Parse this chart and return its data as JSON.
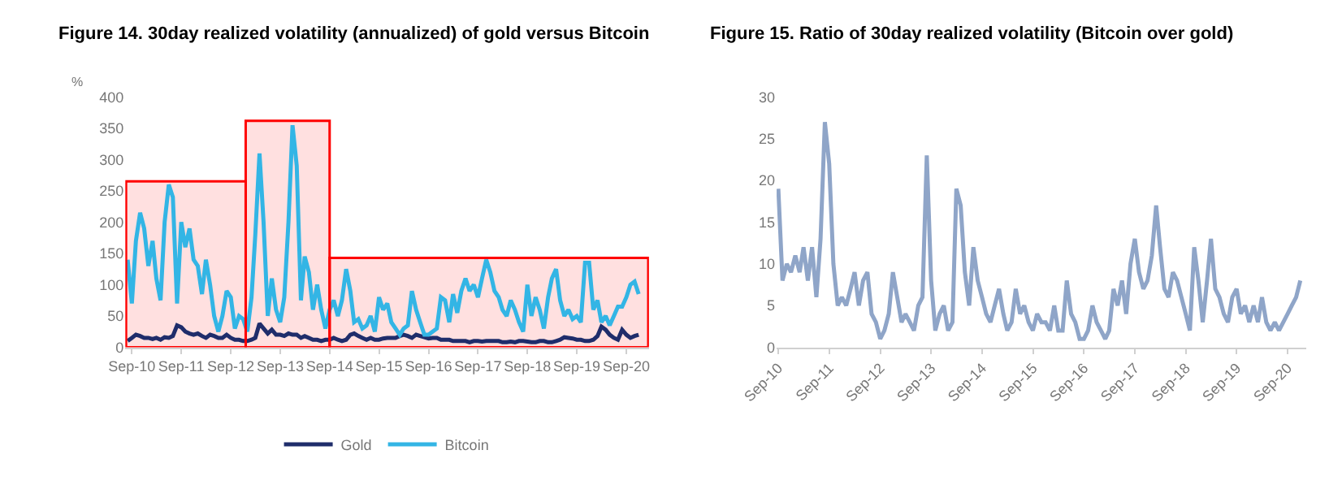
{
  "chart_data": [
    {
      "type": "line",
      "title": "Figure 14. 30day realized volatility (annualized) of gold versus Bitcoin",
      "ylabel": "%",
      "legend": "bottom",
      "grid": false,
      "x": [
        "2010-08",
        "2010-09",
        "2010-10",
        "2010-11",
        "2010-12",
        "2011-01",
        "2011-02",
        "2011-03",
        "2011-04",
        "2011-05",
        "2011-06",
        "2011-07",
        "2011-08",
        "2011-09",
        "2011-10",
        "2011-11",
        "2011-12",
        "2012-01",
        "2012-02",
        "2012-03",
        "2012-04",
        "2012-05",
        "2012-06",
        "2012-07",
        "2012-08",
        "2012-09",
        "2012-10",
        "2012-11",
        "2012-12",
        "2013-01",
        "2013-02",
        "2013-03",
        "2013-04",
        "2013-05",
        "2013-06",
        "2013-07",
        "2013-08",
        "2013-09",
        "2013-10",
        "2013-11",
        "2013-12",
        "2014-01",
        "2014-02",
        "2014-03",
        "2014-04",
        "2014-05",
        "2014-06",
        "2014-07",
        "2014-08",
        "2014-09",
        "2014-10",
        "2014-11",
        "2014-12",
        "2015-01",
        "2015-02",
        "2015-03",
        "2015-04",
        "2015-05",
        "2015-06",
        "2015-07",
        "2015-08",
        "2015-09",
        "2015-10",
        "2015-11",
        "2015-12",
        "2016-01",
        "2016-02",
        "2016-03",
        "2016-04",
        "2016-05",
        "2016-06",
        "2016-07",
        "2016-08",
        "2016-09",
        "2016-10",
        "2016-11",
        "2016-12",
        "2017-01",
        "2017-02",
        "2017-03",
        "2017-04",
        "2017-05",
        "2017-06",
        "2017-07",
        "2017-08",
        "2017-09",
        "2017-10",
        "2017-11",
        "2017-12",
        "2018-01",
        "2018-02",
        "2018-03",
        "2018-04",
        "2018-05",
        "2018-06",
        "2018-07",
        "2018-08",
        "2018-09",
        "2018-10",
        "2018-11",
        "2018-12",
        "2019-01",
        "2019-02",
        "2019-03",
        "2019-04",
        "2019-05",
        "2019-06",
        "2019-07",
        "2019-08",
        "2019-09",
        "2019-10",
        "2019-11",
        "2019-12",
        "2020-01",
        "2020-02",
        "2020-03",
        "2020-04",
        "2020-05",
        "2020-06",
        "2020-07",
        "2020-08",
        "2020-09",
        "2020-10",
        "2020-11",
        "2020-12"
      ],
      "series": [
        {
          "name": "Gold",
          "color": "#1f2d6b",
          "values": [
            10,
            15,
            20,
            18,
            15,
            15,
            13,
            15,
            12,
            16,
            15,
            18,
            35,
            32,
            25,
            22,
            20,
            22,
            18,
            15,
            20,
            18,
            15,
            15,
            20,
            15,
            12,
            12,
            10,
            10,
            12,
            15,
            38,
            30,
            22,
            28,
            20,
            20,
            18,
            22,
            20,
            20,
            15,
            18,
            15,
            12,
            12,
            10,
            12,
            12,
            15,
            12,
            10,
            12,
            20,
            22,
            18,
            15,
            12,
            15,
            12,
            12,
            14,
            15,
            15,
            15,
            18,
            20,
            18,
            15,
            20,
            18,
            16,
            14,
            15,
            15,
            12,
            12,
            12,
            10,
            10,
            10,
            10,
            8,
            10,
            10,
            9,
            10,
            10,
            10,
            10,
            8,
            8,
            9,
            8,
            10,
            10,
            9,
            8,
            8,
            10,
            10,
            8,
            8,
            10,
            12,
            16,
            15,
            14,
            12,
            12,
            10,
            10,
            12,
            18,
            33,
            28,
            20,
            15,
            12,
            28,
            20,
            15,
            18,
            20
          ]
        },
        {
          "name": "Bitcoin",
          "color": "#33b5e5",
          "values": [
            140,
            70,
            170,
            215,
            190,
            130,
            170,
            110,
            75,
            200,
            260,
            240,
            70,
            200,
            160,
            190,
            140,
            130,
            85,
            140,
            100,
            50,
            25,
            50,
            90,
            80,
            30,
            50,
            45,
            25,
            80,
            180,
            310,
            200,
            50,
            110,
            60,
            40,
            80,
            200,
            355,
            290,
            75,
            145,
            120,
            60,
            100,
            60,
            30,
            60,
            75,
            50,
            75,
            125,
            90,
            40,
            45,
            30,
            35,
            50,
            25,
            80,
            60,
            70,
            40,
            30,
            20,
            30,
            35,
            90,
            60,
            40,
            20,
            20,
            25,
            30,
            80,
            75,
            40,
            85,
            55,
            90,
            110,
            90,
            100,
            80,
            110,
            140,
            120,
            90,
            80,
            60,
            50,
            75,
            60,
            40,
            25,
            100,
            50,
            80,
            60,
            30,
            80,
            110,
            125,
            75,
            50,
            60,
            45,
            50,
            40,
            135,
            135,
            60,
            75,
            40,
            50,
            35,
            50,
            65,
            65,
            80,
            100,
            105,
            85
          ]
        }
      ],
      "xlim": [
        "2010-07-15",
        "2021-02-15"
      ],
      "xticks": [
        {
          "value": "2010-09",
          "label": "Sep-10"
        },
        {
          "value": "2011-09",
          "label": "Sep-11"
        },
        {
          "value": "2012-09",
          "label": "Sep-12"
        },
        {
          "value": "2013-09",
          "label": "Sep-13"
        },
        {
          "value": "2014-09",
          "label": "Sep-14"
        },
        {
          "value": "2015-09",
          "label": "Sep-15"
        },
        {
          "value": "2016-09",
          "label": "Sep-16"
        },
        {
          "value": "2017-09",
          "label": "Sep-17"
        },
        {
          "value": "2018-09",
          "label": "Sep-18"
        },
        {
          "value": "2019-09",
          "label": "Sep-19"
        },
        {
          "value": "2020-09",
          "label": "Sep-20"
        }
      ],
      "ylim": [
        0,
        400
      ],
      "yticks": [
        0,
        50,
        100,
        150,
        200,
        250,
        300,
        350,
        400
      ],
      "bands": [
        {
          "axis": "x",
          "from": "2010-07-20",
          "to": "2012-12-20",
          "color": "#ff0000"
        },
        {
          "axis": "x",
          "from": "2012-12-20",
          "to": "2014-09-01",
          "color": "#ff0000"
        },
        {
          "axis": "x",
          "from": "2014-09-01",
          "to": "2021-02-10",
          "color": "#ff0000"
        }
      ]
    },
    {
      "type": "line",
      "title": "Figure 15. Ratio of 30day realized volatility (Bitcoin over gold)",
      "grid": false,
      "legend": false,
      "x": [
        "2010-09",
        "2010-10",
        "2010-11",
        "2010-12",
        "2011-01",
        "2011-02",
        "2011-03",
        "2011-04",
        "2011-05",
        "2011-06",
        "2011-07",
        "2011-08",
        "2011-09",
        "2011-10",
        "2011-11",
        "2011-12",
        "2012-01",
        "2012-02",
        "2012-03",
        "2012-04",
        "2012-05",
        "2012-06",
        "2012-07",
        "2012-08",
        "2012-09",
        "2012-10",
        "2012-11",
        "2012-12",
        "2013-01",
        "2013-02",
        "2013-03",
        "2013-04",
        "2013-05",
        "2013-06",
        "2013-07",
        "2013-08",
        "2013-09",
        "2013-10",
        "2013-11",
        "2013-12",
        "2014-01",
        "2014-02",
        "2014-03",
        "2014-04",
        "2014-05",
        "2014-06",
        "2014-07",
        "2014-08",
        "2014-09",
        "2014-10",
        "2014-11",
        "2014-12",
        "2015-01",
        "2015-02",
        "2015-03",
        "2015-04",
        "2015-05",
        "2015-06",
        "2015-07",
        "2015-08",
        "2015-09",
        "2015-10",
        "2015-11",
        "2015-12",
        "2016-01",
        "2016-02",
        "2016-03",
        "2016-04",
        "2016-05",
        "2016-06",
        "2016-07",
        "2016-08",
        "2016-09",
        "2016-10",
        "2016-11",
        "2016-12",
        "2017-01",
        "2017-02",
        "2017-03",
        "2017-04",
        "2017-05",
        "2017-06",
        "2017-07",
        "2017-08",
        "2017-09",
        "2017-10",
        "2017-11",
        "2017-12",
        "2018-01",
        "2018-02",
        "2018-03",
        "2018-04",
        "2018-05",
        "2018-06",
        "2018-07",
        "2018-08",
        "2018-09",
        "2018-10",
        "2018-11",
        "2018-12",
        "2019-01",
        "2019-02",
        "2019-03",
        "2019-04",
        "2019-05",
        "2019-06",
        "2019-07",
        "2019-08",
        "2019-09",
        "2019-10",
        "2019-11",
        "2019-12",
        "2020-01",
        "2020-02",
        "2020-03",
        "2020-04",
        "2020-05",
        "2020-06",
        "2020-07",
        "2020-08",
        "2020-09",
        "2020-10",
        "2020-11",
        "2020-12"
      ],
      "series": [
        {
          "color": "#8fa5c8",
          "values": [
            19,
            8,
            10,
            9,
            11,
            9,
            12,
            8,
            12,
            6,
            13,
            27,
            22,
            10,
            5,
            6,
            5,
            7,
            9,
            5,
            8,
            9,
            4,
            3,
            1,
            2,
            4,
            9,
            6,
            3,
            4,
            3,
            2,
            5,
            6,
            23,
            8,
            2,
            4,
            5,
            2,
            3,
            19,
            17,
            9,
            5,
            12,
            8,
            6,
            4,
            3,
            5,
            7,
            4,
            2,
            3,
            7,
            4,
            5,
            3,
            2,
            4,
            3,
            3,
            2,
            5,
            2,
            2,
            8,
            4,
            3,
            1,
            1,
            2,
            5,
            3,
            2,
            1,
            2,
            7,
            5,
            8,
            4,
            10,
            13,
            9,
            7,
            8,
            11,
            17,
            12,
            7,
            6,
            9,
            8,
            6,
            4,
            2,
            12,
            8,
            3,
            8,
            13,
            7,
            6,
            4,
            3,
            6,
            7,
            4,
            5,
            3,
            5,
            3,
            6,
            3,
            2,
            3,
            2,
            3,
            4,
            5,
            6,
            8
          ]
        }
      ],
      "xlim": [
        "2010-08-20",
        "2021-01-15"
      ],
      "xticks": [
        {
          "value": "2010-09",
          "label": "Sep-10"
        },
        {
          "value": "2011-09",
          "label": "Sep-11"
        },
        {
          "value": "2012-09",
          "label": "Sep-12"
        },
        {
          "value": "2013-09",
          "label": "Sep-13"
        },
        {
          "value": "2014-09",
          "label": "Sep-14"
        },
        {
          "value": "2015-09",
          "label": "Sep-15"
        },
        {
          "value": "2016-09",
          "label": "Sep-16"
        },
        {
          "value": "2017-09",
          "label": "Sep-17"
        },
        {
          "value": "2018-09",
          "label": "Sep-18"
        },
        {
          "value": "2019-09",
          "label": "Sep-19"
        },
        {
          "value": "2020-09",
          "label": "Sep-20"
        }
      ],
      "ylim": [
        0,
        30
      ],
      "yticks": [
        0,
        5,
        10,
        15,
        20,
        25,
        30
      ]
    }
  ]
}
